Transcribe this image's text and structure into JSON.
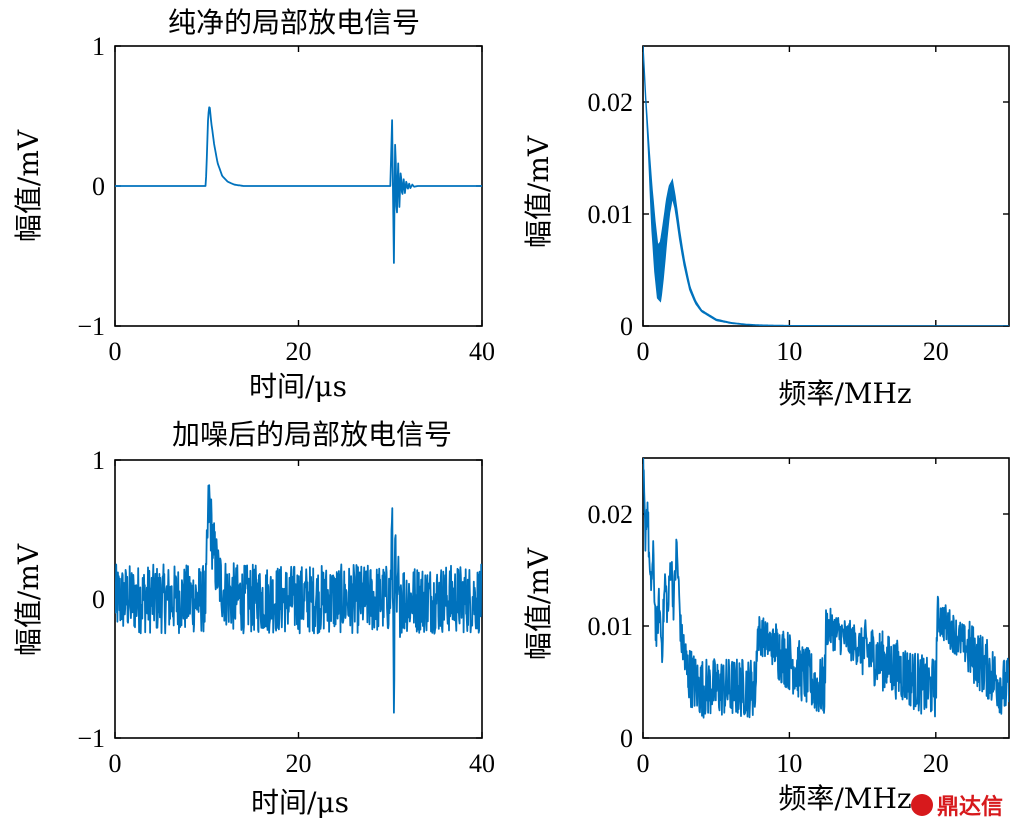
{
  "chart_data": [
    {
      "id": "clean_time",
      "type": "line",
      "title": "纯净的局部放电信号",
      "xlabel": "时间/μs",
      "ylabel": "幅值/mV",
      "xlim": [
        0,
        40
      ],
      "ylim": [
        -1,
        1
      ],
      "xticks": [
        "0",
        "20",
        "40"
      ],
      "yticks": [
        "−1",
        "0",
        "1"
      ],
      "x": [
        0,
        9.9,
        10.0,
        10.15,
        10.3,
        10.5,
        10.8,
        11.2,
        11.7,
        12.3,
        13.0,
        14.0,
        16.0,
        30.0,
        30.2,
        30.4,
        30.55,
        30.7,
        30.85,
        31.0,
        31.15,
        31.3,
        31.45,
        31.6,
        31.75,
        31.9,
        32.05,
        32.2,
        32.4,
        32.6,
        33.0,
        40
      ],
      "series": [
        {
          "values": [
            0,
            0,
            0.2,
            0.5,
            0.58,
            0.45,
            0.3,
            0.16,
            0.07,
            0.03,
            0.01,
            0,
            0,
            0,
            0.47,
            -0.55,
            0.4,
            -0.3,
            0.2,
            -0.15,
            0.12,
            -0.09,
            0.06,
            -0.05,
            0.04,
            -0.03,
            0.02,
            -0.015,
            0.01,
            -0.005,
            0,
            0
          ]
        }
      ]
    },
    {
      "id": "clean_freq",
      "type": "area",
      "title": "",
      "xlabel": "频率/MHz",
      "ylabel": "幅值/mV",
      "xlim": [
        0,
        25
      ],
      "ylim": [
        0,
        0.025
      ],
      "xticks": [
        "0",
        "10",
        "20"
      ],
      "yticks": [
        "0",
        "0.01",
        "0.02"
      ],
      "x": [
        0,
        0.2,
        0.4,
        0.6,
        0.8,
        1.0,
        1.2,
        1.4,
        1.6,
        1.8,
        2.0,
        2.2,
        2.5,
        2.8,
        3.2,
        3.6,
        4.0,
        5.0,
        6.0,
        7.0,
        8.0,
        10.0,
        15.0,
        25.0
      ],
      "series": [
        {
          "upper": [
            0.025,
            0.02,
            0.016,
            0.0125,
            0.0095,
            0.0072,
            0.0075,
            0.0092,
            0.0112,
            0.0125,
            0.013,
            0.0115,
            0.0085,
            0.006,
            0.0035,
            0.0022,
            0.0014,
            0.0006,
            0.0003,
            0.00015,
            8e-05,
            3e-05,
            1e-05,
            0
          ],
          "lower": [
            0.025,
            0.02,
            0.015,
            0.009,
            0.005,
            0.0025,
            0.0022,
            0.0045,
            0.0075,
            0.01,
            0.0115,
            0.0105,
            0.0078,
            0.0055,
            0.0032,
            0.002,
            0.0013,
            0.0005,
            0.00025,
            0.00012,
            6e-05,
            2e-05,
            0,
            0
          ]
        }
      ]
    },
    {
      "id": "noisy_time",
      "type": "line",
      "title": "加噪后的局部放电信号",
      "xlabel": "时间/μs",
      "ylabel": "幅值/mV",
      "xlim": [
        0,
        40
      ],
      "ylim": [
        -1,
        1
      ],
      "xticks": [
        "0",
        "20",
        "40"
      ],
      "yticks": [
        "−1",
        "0",
        "1"
      ],
      "noise_band": [
        -0.25,
        0.25
      ],
      "x": [
        0,
        9.9,
        10.0,
        10.15,
        10.3,
        10.5,
        10.8,
        11.2,
        11.7,
        12.3,
        13.0,
        14.0,
        16.0,
        30.0,
        30.2,
        30.4,
        30.55,
        30.7,
        30.85,
        31.0,
        31.15,
        31.3,
        31.45,
        31.6,
        31.75,
        31.9,
        32.05,
        32.2,
        32.4,
        32.6,
        33.0,
        40
      ],
      "series": [
        {
          "values": [
            0,
            0,
            0.25,
            0.6,
            0.7,
            0.5,
            0.32,
            0.18,
            0.08,
            0.03,
            0.01,
            0,
            0,
            0,
            0.57,
            -0.68,
            0.45,
            -0.3,
            0.2,
            -0.15,
            0.12,
            -0.09,
            0.06,
            -0.05,
            0.04,
            -0.03,
            0.02,
            -0.015,
            0.01,
            -0.005,
            0,
            0
          ]
        }
      ]
    },
    {
      "id": "noisy_freq",
      "type": "line",
      "title": "",
      "xlabel": "频率/MHz",
      "ylabel": "幅值/mV",
      "xlim": [
        0,
        25
      ],
      "ylim": [
        0,
        0.025
      ],
      "xticks": [
        "0",
        "10",
        "20"
      ],
      "yticks": [
        "0",
        "0.01",
        "0.02"
      ],
      "noise_band": [
        0.0015,
        0.0075
      ],
      "x": [
        0,
        0.15,
        0.3,
        0.5,
        0.7,
        0.9,
        1.1,
        1.3,
        1.5,
        1.7,
        1.9,
        2.1,
        2.3,
        2.6,
        3.0,
        3.5,
        4.0,
        7.7,
        7.8,
        12.4,
        12.5,
        20.0,
        20.1,
        25.0
      ],
      "series": [
        {
          "values": [
            0.025,
            0.018,
            0.021,
            0.013,
            0.016,
            0.009,
            0.012,
            0.008,
            0.014,
            0.011,
            0.016,
            0.012,
            0.017,
            0.009,
            0.006,
            0.005,
            0.004,
            0.004,
            0.0095,
            0.004,
            0.01,
            0.004,
            0.011,
            0.004
          ]
        }
      ]
    }
  ],
  "watermark": {
    "text": "鼎达信",
    "color": "#d7191c"
  },
  "colors": {
    "series": "#0072BD",
    "axes": "#000000"
  }
}
